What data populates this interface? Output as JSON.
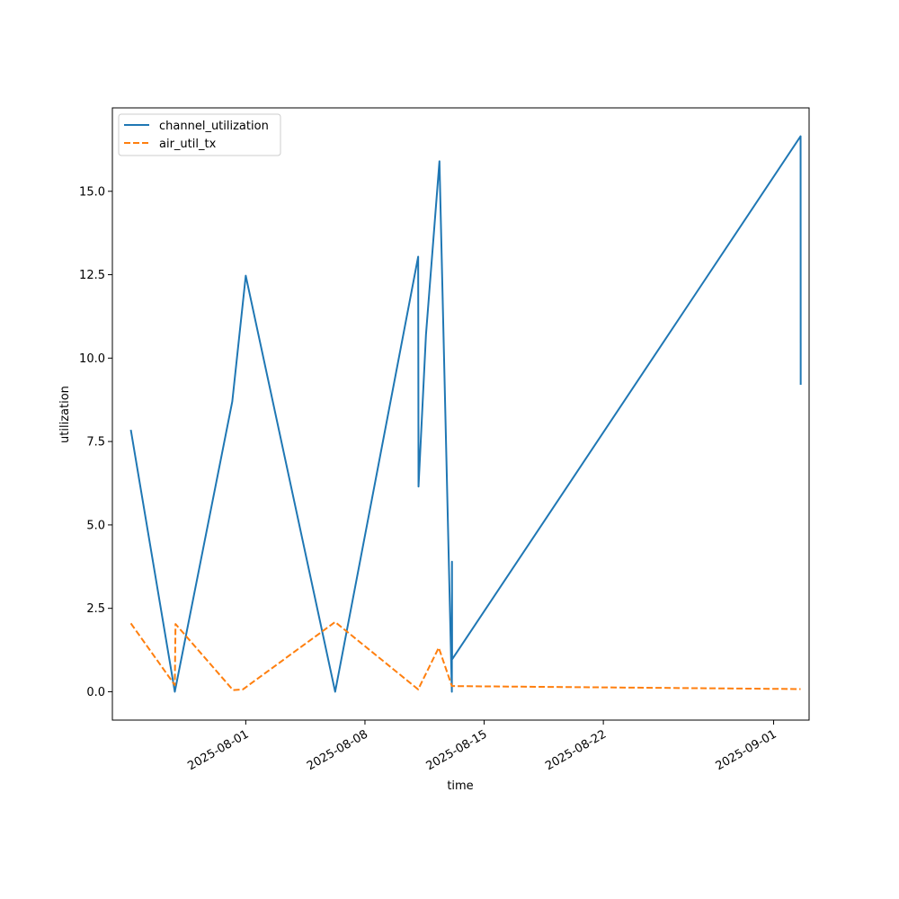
{
  "chart_data": {
    "type": "line",
    "title": "",
    "xlabel": "time",
    "ylabel": "utilization",
    "x_ticks": [
      "2025-08-01",
      "2025-08-08",
      "2025-08-15",
      "2025-08-22",
      "2025-09-01"
    ],
    "y_ticks": [
      "0.0",
      "2.5",
      "5.0",
      "7.5",
      "10.0",
      "12.5",
      "15.0"
    ],
    "xlim": [
      "2025-07-24 04:00",
      "2025-09-03 02:00"
    ],
    "ylim": [
      -0.85,
      17.5
    ],
    "grid": false,
    "legend_position": "top-left",
    "series": [
      {
        "name": "channel_utilization",
        "color": "#1f77b4",
        "style": "solid",
        "points": [
          [
            "2025-07-25 06:00",
            7.85
          ],
          [
            "2025-07-27 20:00",
            0.0
          ],
          [
            "2025-07-31 05:00",
            8.7
          ],
          [
            "2025-08-01 00:00",
            12.47
          ],
          [
            "2025-08-06 06:00",
            0.0
          ],
          [
            "2025-08-11 03:00",
            13.04
          ],
          [
            "2025-08-11 03:30",
            6.15
          ],
          [
            "2025-08-11 14:00",
            10.7
          ],
          [
            "2025-08-12 09:00",
            15.9
          ],
          [
            "2025-08-13 02:30",
            0.0
          ],
          [
            "2025-08-13 02:40",
            3.9
          ],
          [
            "2025-08-13 02:50",
            0.97
          ],
          [
            "2025-09-02 14:00",
            16.65
          ],
          [
            "2025-09-02 14:10",
            9.2
          ]
        ]
      },
      {
        "name": "air_util_tx",
        "color": "#ff7f0e",
        "style": "dashed",
        "points": [
          [
            "2025-07-25 06:00",
            2.05
          ],
          [
            "2025-07-27 20:00",
            0.2
          ],
          [
            "2025-07-27 21:00",
            2.03
          ],
          [
            "2025-07-31 06:00",
            0.05
          ],
          [
            "2025-07-31 20:00",
            0.07
          ],
          [
            "2025-08-06 06:00",
            2.09
          ],
          [
            "2025-08-11 03:00",
            0.07
          ],
          [
            "2025-08-12 08:00",
            1.32
          ],
          [
            "2025-08-13 02:30",
            0.17
          ],
          [
            "2025-09-02 14:00",
            0.08
          ]
        ]
      }
    ]
  }
}
